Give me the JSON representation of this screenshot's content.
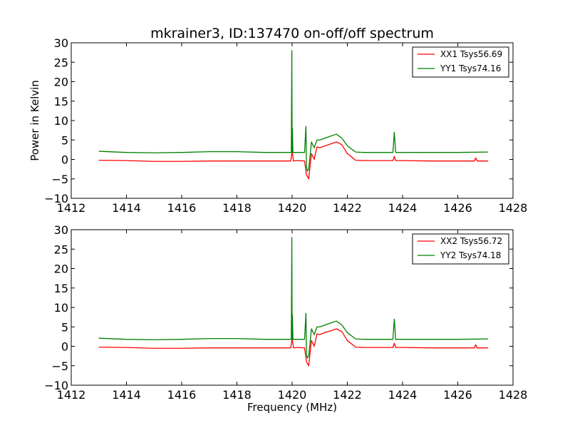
{
  "figure": {
    "title": "mkrainer3, ID:137470 on-off/off spectrum",
    "xlabel": "Frequency (MHz)"
  },
  "chart_data": [
    {
      "type": "line",
      "title": "mkrainer3, ID:137470 on-off/off spectrum",
      "xlabel": "",
      "ylabel": "Power in Kelvin",
      "xlim": [
        1412,
        1428
      ],
      "ylim": [
        -10,
        30
      ],
      "xticks": [
        "1412",
        "1414",
        "1416",
        "1418",
        "1420",
        "1422",
        "1424",
        "1426",
        "1428"
      ],
      "yticks": [
        "30",
        "25",
        "20",
        "15",
        "10",
        "5",
        "0",
        "−5",
        "−10"
      ],
      "grid": false,
      "legend_position": "top-right",
      "legend": [
        "XX1 Tsys56.69",
        "YY1 Tsys74.16"
      ],
      "series": [
        {
          "name": "XX1 Tsys56.69",
          "color": "#ff0000",
          "x": [
            1413,
            1414,
            1415,
            1416,
            1417,
            1418,
            1419,
            1419.95,
            1420.0,
            1420.05,
            1420.2,
            1420.45,
            1420.52,
            1420.6,
            1420.7,
            1420.8,
            1420.9,
            1421.0,
            1421.2,
            1421.4,
            1421.6,
            1421.8,
            1422.0,
            1422.3,
            1422.6,
            1423.0,
            1423.65,
            1423.7,
            1423.75,
            1424,
            1425,
            1426,
            1426.6,
            1426.65,
            1426.7,
            1427.1
          ],
          "y": [
            -0.2,
            -0.3,
            -0.5,
            -0.5,
            -0.4,
            -0.4,
            -0.4,
            -0.4,
            2.0,
            -0.4,
            -0.3,
            -0.4,
            -4.0,
            -5.0,
            1.5,
            0.0,
            3.2,
            3.0,
            3.5,
            4.0,
            4.5,
            3.8,
            1.5,
            -0.2,
            -0.3,
            -0.3,
            -0.3,
            0.8,
            -0.3,
            -0.3,
            -0.4,
            -0.4,
            -0.4,
            0.4,
            -0.4,
            -0.4
          ]
        },
        {
          "name": "YY1 Tsys74.16",
          "color": "#008000",
          "x": [
            1413,
            1414,
            1415,
            1416,
            1417,
            1418,
            1419,
            1419.97,
            1419.99,
            1420.0,
            1420.01,
            1420.03,
            1420.05,
            1420.2,
            1420.45,
            1420.5,
            1420.52,
            1420.55,
            1420.6,
            1420.7,
            1420.8,
            1420.9,
            1421.0,
            1421.2,
            1421.4,
            1421.6,
            1421.8,
            1422.0,
            1422.3,
            1422.6,
            1423.0,
            1423.65,
            1423.7,
            1423.75,
            1424,
            1425,
            1426,
            1427.1
          ],
          "y": [
            2.1,
            1.8,
            1.7,
            1.8,
            2.0,
            2.0,
            1.8,
            1.8,
            28.0,
            1.8,
            8.0,
            1.8,
            1.8,
            1.8,
            1.8,
            8.5,
            -2.0,
            -3.0,
            -2.5,
            4.5,
            3.0,
            5.0,
            5.0,
            5.5,
            6.0,
            6.5,
            5.5,
            3.5,
            1.9,
            1.8,
            1.8,
            1.8,
            7.0,
            1.8,
            1.8,
            1.8,
            1.8,
            1.9
          ]
        }
      ]
    },
    {
      "type": "line",
      "title": "",
      "xlabel": "Frequency (MHz)",
      "ylabel": "",
      "xlim": [
        1412,
        1428
      ],
      "ylim": [
        -10,
        30
      ],
      "xticks": [
        "1412",
        "1414",
        "1416",
        "1418",
        "1420",
        "1422",
        "1424",
        "1426",
        "1428"
      ],
      "yticks": [
        "30",
        "25",
        "20",
        "15",
        "10",
        "5",
        "0",
        "−5",
        "−10"
      ],
      "grid": false,
      "legend_position": "top-right",
      "legend": [
        "XX2 Tsys56.72",
        "YY2 Tsys74.18"
      ],
      "series": [
        {
          "name": "XX2 Tsys56.72",
          "color": "#ff0000",
          "x": [
            1413,
            1414,
            1415,
            1416,
            1417,
            1418,
            1419,
            1419.95,
            1420.0,
            1420.05,
            1420.2,
            1420.45,
            1420.52,
            1420.6,
            1420.7,
            1420.8,
            1420.9,
            1421.0,
            1421.2,
            1421.4,
            1421.6,
            1421.8,
            1422.0,
            1422.3,
            1422.6,
            1423.0,
            1423.65,
            1423.7,
            1423.75,
            1424,
            1425,
            1426,
            1426.6,
            1426.65,
            1426.7,
            1427.1
          ],
          "y": [
            -0.2,
            -0.3,
            -0.5,
            -0.5,
            -0.4,
            -0.4,
            -0.4,
            -0.4,
            2.0,
            -0.4,
            -0.3,
            -0.4,
            -4.0,
            -5.0,
            1.5,
            0.0,
            3.2,
            3.0,
            3.6,
            4.0,
            4.5,
            3.8,
            1.5,
            -0.2,
            -0.3,
            -0.3,
            -0.3,
            0.8,
            -0.3,
            -0.3,
            -0.4,
            -0.4,
            -0.4,
            0.4,
            -0.4,
            -0.4
          ]
        },
        {
          "name": "YY2 Tsys74.18",
          "color": "#008000",
          "x": [
            1413,
            1414,
            1415,
            1416,
            1417,
            1418,
            1419,
            1419.97,
            1419.99,
            1420.0,
            1420.01,
            1420.03,
            1420.05,
            1420.2,
            1420.45,
            1420.5,
            1420.52,
            1420.55,
            1420.6,
            1420.7,
            1420.8,
            1420.9,
            1421.0,
            1421.2,
            1421.4,
            1421.6,
            1421.8,
            1422.0,
            1422.3,
            1422.6,
            1423.0,
            1423.65,
            1423.7,
            1423.75,
            1424,
            1425,
            1426,
            1427.1
          ],
          "y": [
            2.1,
            1.8,
            1.7,
            1.8,
            2.0,
            2.0,
            1.8,
            1.8,
            28.0,
            1.8,
            8.0,
            1.8,
            1.8,
            1.8,
            1.8,
            8.5,
            -2.0,
            -3.0,
            -2.5,
            4.5,
            3.0,
            5.0,
            5.0,
            5.5,
            6.0,
            6.5,
            5.5,
            3.5,
            1.9,
            1.8,
            1.8,
            1.8,
            7.0,
            1.8,
            1.8,
            1.8,
            1.8,
            1.9
          ]
        }
      ]
    }
  ]
}
